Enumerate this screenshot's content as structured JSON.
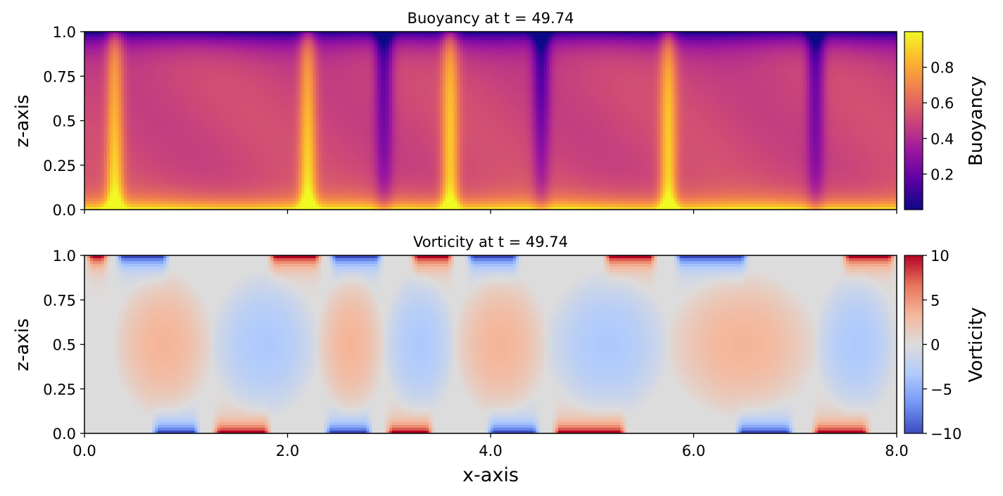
{
  "figure": {
    "xlabel": "x-axis",
    "x_ticks": [
      "0.0",
      "2.0",
      "4.0",
      "6.0",
      "8.0"
    ]
  },
  "colors": {
    "plasma": [
      "#0d0887",
      "#5c01a6",
      "#9c179e",
      "#cc4778",
      "#ed7953",
      "#fdb42f",
      "#f0f921"
    ],
    "coolwarm": [
      "#3b4cc0",
      "#7396f5",
      "#b0cbfc",
      "#dddcdc",
      "#f5b79b",
      "#e7745b",
      "#b40426"
    ]
  },
  "chart_data": [
    {
      "type": "heatmap",
      "title": "Buoyancy at t = 49.74",
      "field": "buoyancy",
      "xlabel": "",
      "ylabel": "z-axis",
      "xlim": [
        0,
        8
      ],
      "ylim": [
        0,
        1
      ],
      "x_ticks": [
        0,
        2,
        4,
        6,
        8
      ],
      "x_tick_labels_shown": false,
      "y_ticks": [
        0,
        0.25,
        0.5,
        0.75,
        1.0
      ],
      "y_tick_labels": [
        "0.0",
        "0.25",
        "0.5",
        "0.75",
        "1.0"
      ],
      "colorbar": {
        "label": "Buoyancy",
        "colormap": "plasma",
        "range": [
          0,
          1
        ],
        "ticks": [
          0.2,
          0.4,
          0.6,
          0.8
        ],
        "tick_labels": [
          "0.2",
          "0.4",
          "0.6",
          "0.8"
        ]
      },
      "plumes": [
        {
          "x": 0.3,
          "direction": "up"
        },
        {
          "x": 2.2,
          "direction": "up"
        },
        {
          "x": 2.95,
          "direction": "down"
        },
        {
          "x": 3.6,
          "direction": "up"
        },
        {
          "x": 4.5,
          "direction": "down"
        },
        {
          "x": 5.75,
          "direction": "up"
        },
        {
          "x": 7.2,
          "direction": "down"
        }
      ]
    },
    {
      "type": "heatmap",
      "title": "Vorticity at t = 49.74",
      "field": "vorticity",
      "xlabel": "x-axis",
      "ylabel": "z-axis",
      "xlim": [
        0,
        8
      ],
      "ylim": [
        0,
        1
      ],
      "x_ticks": [
        0,
        2,
        4,
        6,
        8
      ],
      "x_tick_labels": [
        "0.0",
        "2.0",
        "4.0",
        "6.0",
        "8.0"
      ],
      "y_ticks": [
        0,
        0.25,
        0.5,
        0.75,
        1.0
      ],
      "y_tick_labels": [
        "0.0",
        "0.25",
        "0.5",
        "0.75",
        "1.0"
      ],
      "colorbar": {
        "label": "Vorticity",
        "colormap": "coolwarm",
        "range": [
          -10,
          10
        ],
        "ticks": [
          -10,
          -5,
          0,
          5,
          10
        ],
        "tick_labels": [
          "−10",
          "−5",
          "0",
          "5",
          "10"
        ]
      },
      "cells": [
        {
          "x0": 0.3,
          "x1": 1.25,
          "sign": 1
        },
        {
          "x0": 1.25,
          "x1": 2.3,
          "sign": -1
        },
        {
          "x0": 2.3,
          "x1": 2.95,
          "sign": 1
        },
        {
          "x0": 2.95,
          "x1": 3.65,
          "sign": -1
        },
        {
          "x0": 3.65,
          "x1": 4.55,
          "sign": 1
        },
        {
          "x0": 4.55,
          "x1": 5.75,
          "sign": -1
        },
        {
          "x0": 5.75,
          "x1": 7.2,
          "sign": 1
        },
        {
          "x0": 7.2,
          "x1": 8.0,
          "sign": -1
        }
      ],
      "top_patches": [
        {
          "x0": 0.0,
          "x1": 0.25,
          "sign": 1
        },
        {
          "x0": 0.3,
          "x1": 0.85,
          "sign": -1
        },
        {
          "x0": 1.8,
          "x1": 2.35,
          "sign": 1
        },
        {
          "x0": 2.4,
          "x1": 2.95,
          "sign": -1
        },
        {
          "x0": 3.2,
          "x1": 3.65,
          "sign": 1
        },
        {
          "x0": 3.75,
          "x1": 4.3,
          "sign": -1
        },
        {
          "x0": 5.1,
          "x1": 5.65,
          "sign": 1
        },
        {
          "x0": 5.8,
          "x1": 6.55,
          "sign": -1
        },
        {
          "x0": 7.45,
          "x1": 8.0,
          "sign": 1
        }
      ],
      "bottom_patches": [
        {
          "x0": 0.65,
          "x1": 1.15,
          "sign": -1
        },
        {
          "x0": 1.25,
          "x1": 1.85,
          "sign": 1
        },
        {
          "x0": 2.35,
          "x1": 2.85,
          "sign": -1
        },
        {
          "x0": 2.95,
          "x1": 3.45,
          "sign": 1
        },
        {
          "x0": 3.95,
          "x1": 4.5,
          "sign": -1
        },
        {
          "x0": 4.6,
          "x1": 5.35,
          "sign": 1
        },
        {
          "x0": 6.4,
          "x1": 7.0,
          "sign": -1
        },
        {
          "x0": 7.15,
          "x1": 7.75,
          "sign": 1
        }
      ]
    }
  ]
}
